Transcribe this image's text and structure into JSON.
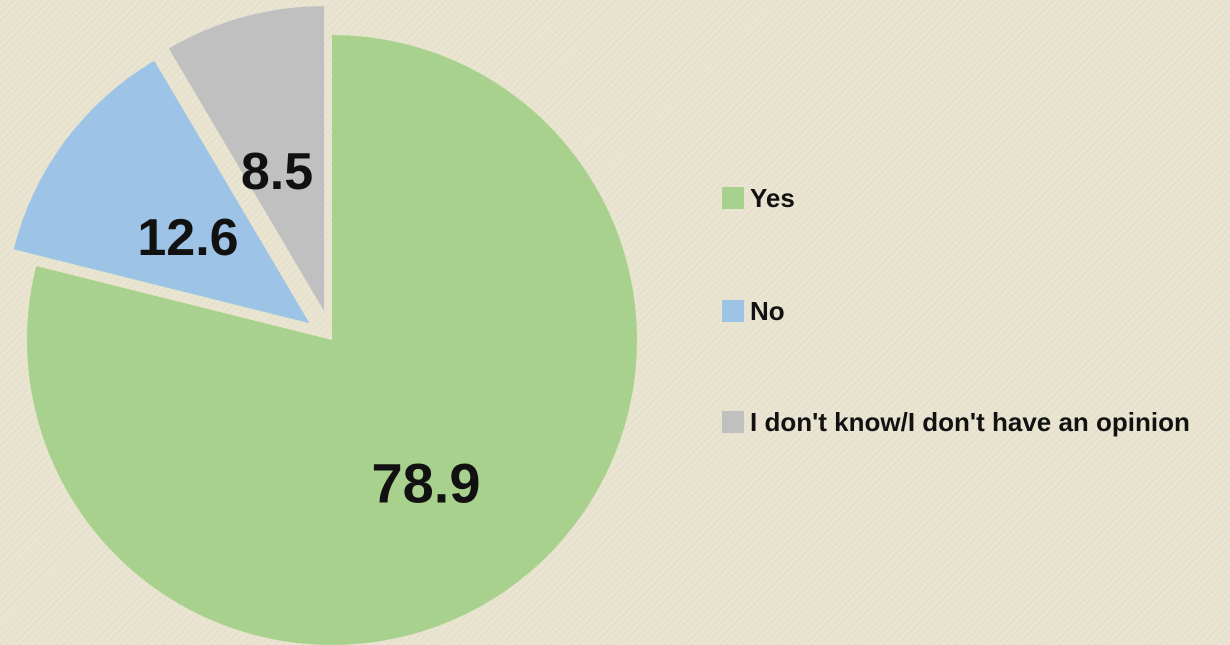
{
  "chart_data": {
    "type": "pie",
    "title": "",
    "slices": [
      {
        "label": "Yes",
        "value": 78.9,
        "color": "#a9d18e"
      },
      {
        "label": "No",
        "value": 12.6,
        "color": "#9dc3e6"
      },
      {
        "label": "I don't know/I don't have an opinion",
        "value": 8.5,
        "color": "#c0c0c0"
      }
    ],
    "labels": [
      "78.9",
      "12.6",
      "8.5"
    ],
    "legend_position": "right",
    "exploded_slices": true
  }
}
